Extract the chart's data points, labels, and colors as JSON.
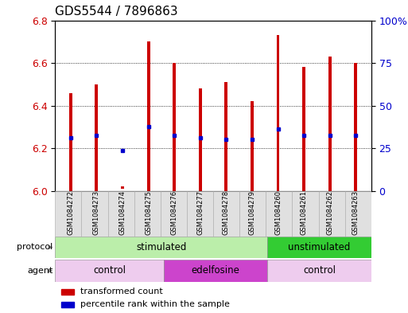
{
  "title": "GDS5544 / 7896863",
  "samples": [
    "GSM1084272",
    "GSM1084273",
    "GSM1084274",
    "GSM1084275",
    "GSM1084276",
    "GSM1084277",
    "GSM1084278",
    "GSM1084279",
    "GSM1084260",
    "GSM1084261",
    "GSM1084262",
    "GSM1084263"
  ],
  "bar_bottoms": [
    6.0,
    6.0,
    6.01,
    6.0,
    6.0,
    6.0,
    6.0,
    6.0,
    6.0,
    6.0,
    6.0,
    6.0
  ],
  "bar_tops": [
    6.46,
    6.5,
    6.02,
    6.7,
    6.6,
    6.48,
    6.51,
    6.42,
    6.73,
    6.58,
    6.63,
    6.6
  ],
  "blue_dots": [
    6.25,
    6.26,
    6.19,
    6.3,
    6.26,
    6.25,
    6.24,
    6.24,
    6.29,
    6.26,
    6.26,
    6.26
  ],
  "ylim": [
    6.0,
    6.8
  ],
  "y_ticks_left": [
    6.0,
    6.2,
    6.4,
    6.6,
    6.8
  ],
  "y_ticks_right": [
    0,
    25,
    50,
    75,
    100
  ],
  "bar_color": "#cc0000",
  "dot_color": "#0000cc",
  "protocol_stimulated_color": "#bbeeaa",
  "protocol_unstimulated_color": "#33cc33",
  "agent_control_color": "#eeccee",
  "agent_edelfosine_color": "#cc44cc",
  "label_stimulated": "stimulated",
  "label_unstimulated": "unstimulated",
  "label_control": "control",
  "label_edelfosine": "edelfosine",
  "legend_bar": "transformed count",
  "legend_dot": "percentile rank within the sample",
  "bg_color": "#ffffff",
  "tick_label_color_left": "#cc0000",
  "tick_label_color_right": "#0000cc",
  "title_fontsize": 11,
  "tick_fontsize": 9,
  "bar_width": 0.12
}
